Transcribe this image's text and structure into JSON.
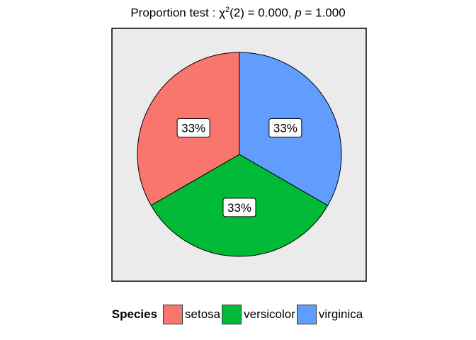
{
  "title": {
    "prefix": "Proportion test : ",
    "chi": "χ",
    "chi_sup": "2",
    "middle": "(2) = 0.000, ",
    "p": "p",
    "suffix": " = 1.000"
  },
  "legend": {
    "title": "Species"
  },
  "chart_data": {
    "type": "pie",
    "categories": [
      "setosa",
      "versicolor",
      "virginica"
    ],
    "values": [
      33.33,
      33.33,
      33.33
    ],
    "labels": [
      "33%",
      "33%",
      "33%"
    ],
    "colors": [
      "#F8766D",
      "#00BA38",
      "#619CFF"
    ],
    "legend_title": "Species",
    "legend_position": "bottom",
    "panel_background": "#EBEBEB"
  }
}
